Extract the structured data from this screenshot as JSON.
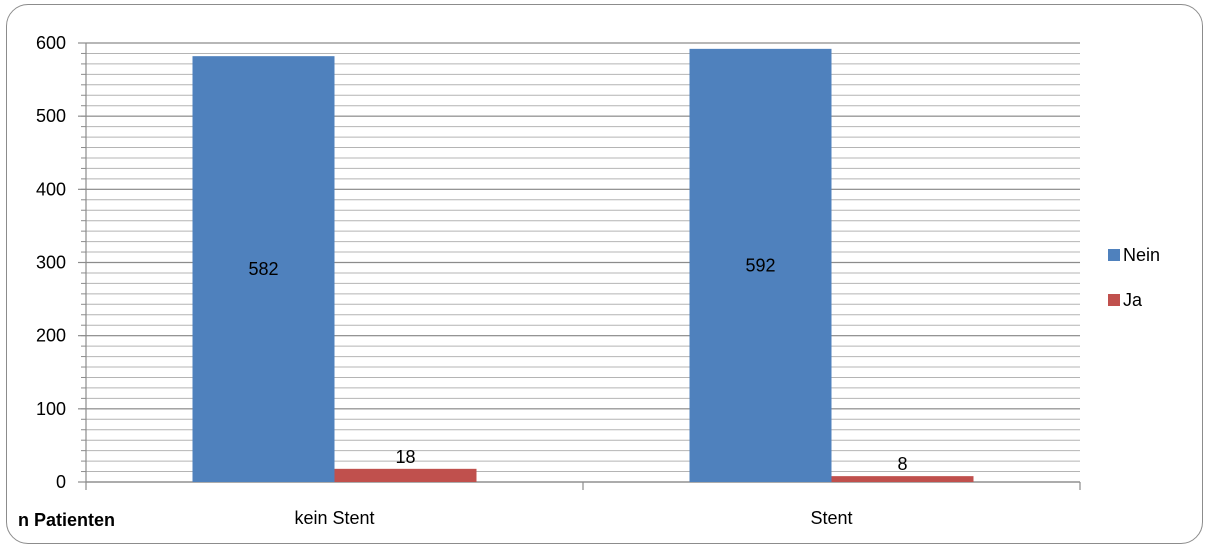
{
  "chart_data": {
    "type": "bar",
    "categories": [
      "kein Stent",
      "Stent"
    ],
    "series": [
      {
        "name": "Nein",
        "values": [
          582,
          592
        ],
        "color": "#4F81BD"
      },
      {
        "name": "Ja",
        "values": [
          18,
          8
        ],
        "color": "#C0504D"
      }
    ],
    "ylim": [
      0,
      600
    ],
    "yticks": [
      0,
      100,
      200,
      300,
      400,
      500,
      600
    ],
    "minor_gridlines": true,
    "legend_position": "right",
    "axis_title": "n Patienten",
    "data_labels": [
      "582",
      "18",
      "592",
      "8"
    ]
  }
}
